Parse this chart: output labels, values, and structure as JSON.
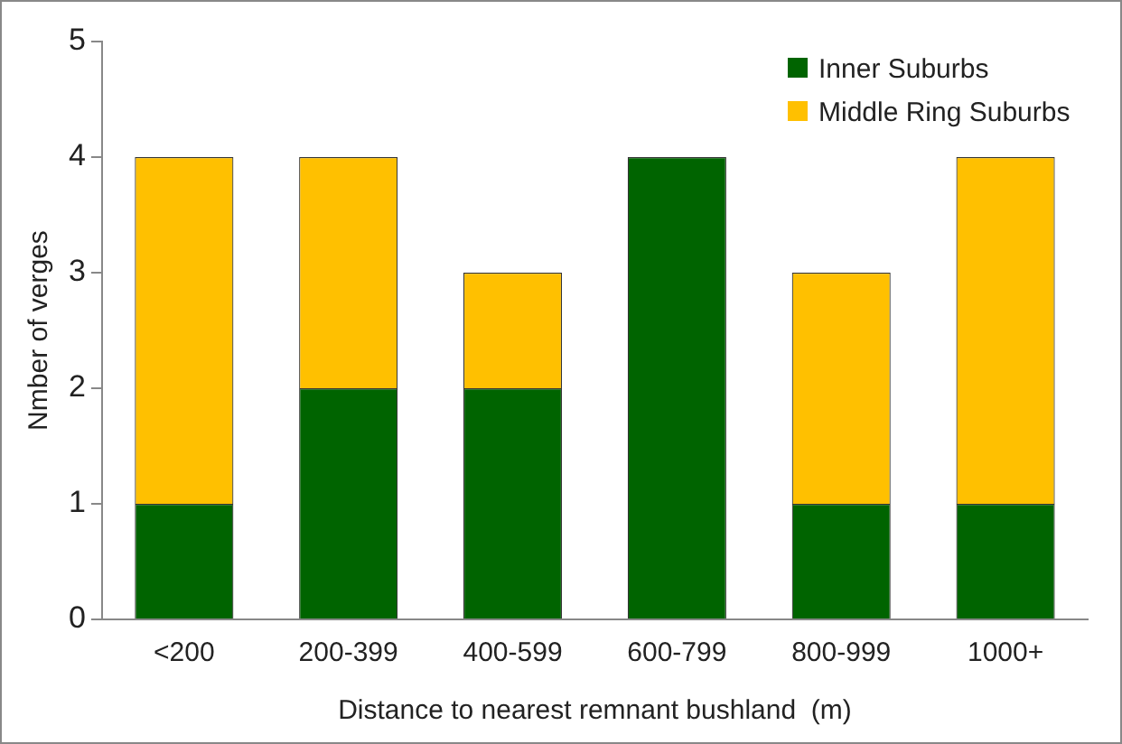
{
  "chart_data": {
    "type": "bar",
    "stacked": true,
    "xlabel": "Distance to nearest remnant bushland  (m)",
    "ylabel": "Nmber of verges",
    "categories": [
      "<200",
      "200-399",
      "400-599",
      "600-799",
      "800-999",
      "1000+"
    ],
    "series": [
      {
        "name": "Inner Suburbs",
        "color": "#006400",
        "values": [
          1,
          2,
          2,
          4,
          1,
          1
        ]
      },
      {
        "name": "Middle Ring Suburbs",
        "color": "#ffc000",
        "values": [
          3,
          2,
          1,
          0,
          2,
          3
        ]
      }
    ],
    "ylim": [
      0,
      5
    ],
    "yticks": [
      0,
      1,
      2,
      3,
      4,
      5
    ],
    "grid": false,
    "legend": "top right"
  }
}
